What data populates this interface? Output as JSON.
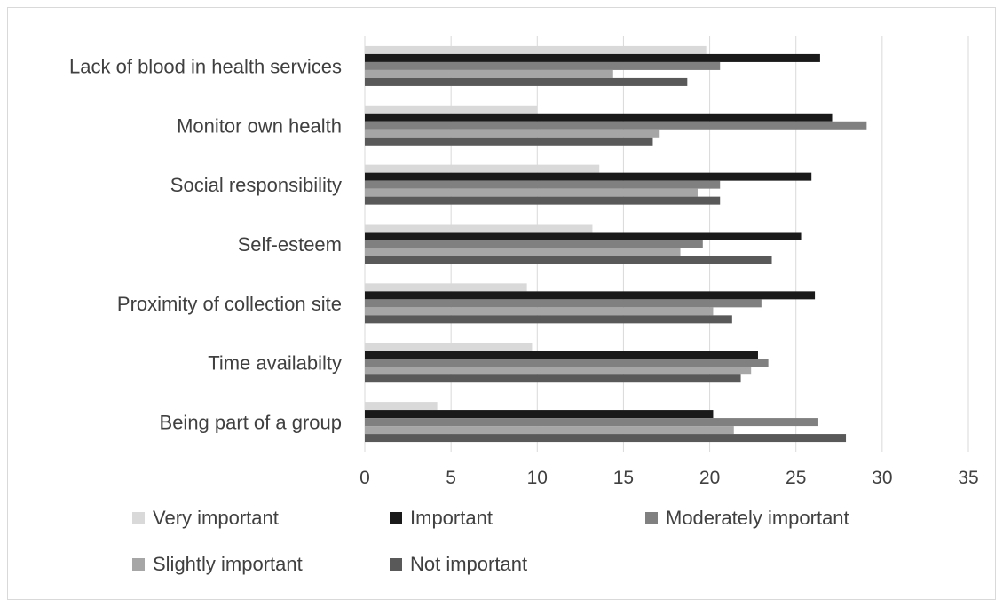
{
  "chart_data": {
    "type": "bar",
    "orientation": "horizontal",
    "title": "",
    "xlabel": "",
    "ylabel": "",
    "categories": [
      "Lack of blood in health services",
      "Monitor own health",
      "Social responsibility",
      "Self-esteem",
      "Proximity of collection site",
      "Time availabilty",
      "Being part of a group"
    ],
    "series": [
      {
        "name": "Very important",
        "color": "#d9d9d9",
        "values": [
          19.8,
          10.0,
          13.6,
          13.2,
          9.4,
          9.7,
          4.2
        ]
      },
      {
        "name": "Important",
        "color": "#1a1a1a",
        "values": [
          26.4,
          27.1,
          25.9,
          25.3,
          26.1,
          22.8,
          20.2
        ]
      },
      {
        "name": "Moderately important",
        "color": "#808080",
        "values": [
          20.6,
          29.1,
          20.6,
          19.6,
          23.0,
          23.4,
          26.3
        ]
      },
      {
        "name": "Slightly important",
        "color": "#a6a6a6",
        "values": [
          14.4,
          17.1,
          19.3,
          18.3,
          20.2,
          22.4,
          21.4
        ]
      },
      {
        "name": "Not important",
        "color": "#595959",
        "values": [
          18.7,
          16.7,
          20.6,
          23.6,
          21.3,
          21.8,
          27.9
        ]
      }
    ],
    "xlim": [
      0,
      35
    ],
    "x_ticks": [
      "0",
      "5",
      "10",
      "15",
      "20",
      "25",
      "30",
      "35"
    ],
    "grid": true,
    "legend_position": "bottom"
  }
}
